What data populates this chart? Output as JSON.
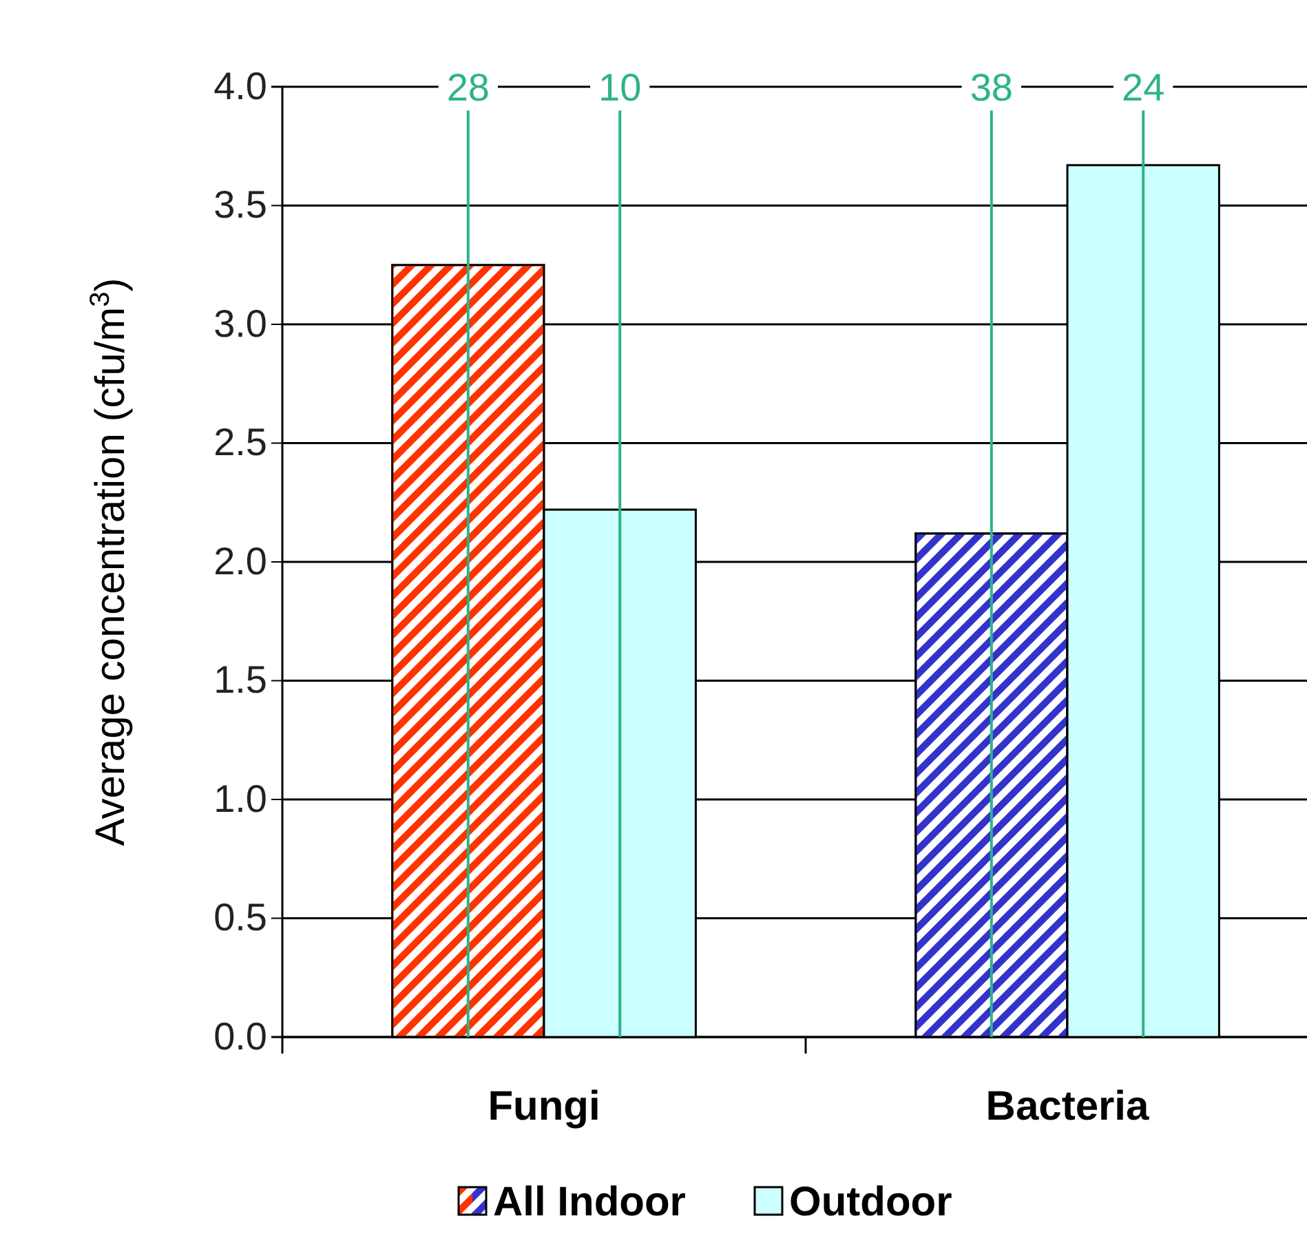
{
  "chart_data": {
    "type": "bar",
    "ylabel": "Average concentration (cfu/m$^{3}$)",
    "categories": [
      "Fungi",
      "Bacteria"
    ],
    "series": [
      {
        "name": "All Indoor",
        "colors": [
          "#ff3300",
          "#3333cc"
        ],
        "values": [
          3.25,
          2.12
        ],
        "errors": [
          [
            0,
            3.9
          ],
          [
            0,
            3.9
          ]
        ]
      },
      {
        "name": "Outdoor",
        "color": "#ccffff",
        "values": [
          2.22,
          3.67
        ],
        "errors": [
          [
            0,
            3.9
          ],
          [
            0,
            3.9
          ]
        ]
      }
    ],
    "ylim": [
      0,
      4
    ],
    "yticks": [
      {
        "value": 0,
        "label": "0.0"
      },
      {
        "value": 0.5,
        "label": "0.5"
      },
      {
        "value": 1,
        "label": "1.0"
      },
      {
        "value": 1.5,
        "label": "1.5"
      },
      {
        "value": 2,
        "label": "2.0"
      },
      {
        "value": 2.5,
        "label": "2.5"
      },
      {
        "value": 3,
        "label": "3.0"
      },
      {
        "value": 3.5,
        "label": "3.5"
      },
      {
        "value": 4,
        "label": "4.0"
      }
    ],
    "grid": "y",
    "legend": "bottom",
    "annotations": [
      "28",
      "10",
      "38",
      "24"
    ]
  }
}
